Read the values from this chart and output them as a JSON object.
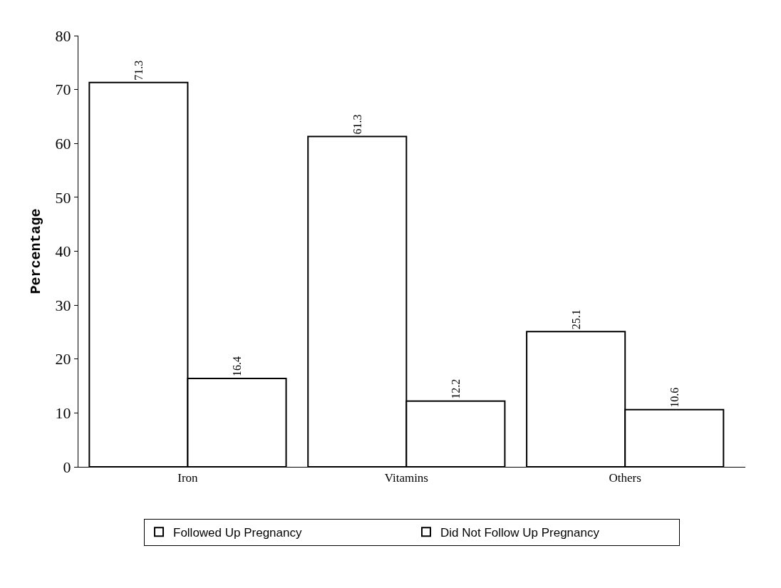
{
  "chart_data": {
    "type": "bar",
    "ylabel": "Percentage",
    "categories": [
      "Iron",
      "Vitamins",
      "Others"
    ],
    "series": [
      {
        "name": "Followed Up Pregnancy",
        "color": "#ffffff",
        "values": [
          71.3,
          61.3,
          25.1
        ]
      },
      {
        "name": "Did Not Follow Up Pregnancy",
        "color": "#ffffff",
        "values": [
          16.4,
          12.2,
          10.6
        ]
      }
    ],
    "ylim": [
      0,
      80
    ],
    "yticks": [
      0,
      10,
      20,
      30,
      40,
      50,
      60,
      70,
      80
    ],
    "data_labels": true,
    "grid": false,
    "legend": "bottom"
  }
}
